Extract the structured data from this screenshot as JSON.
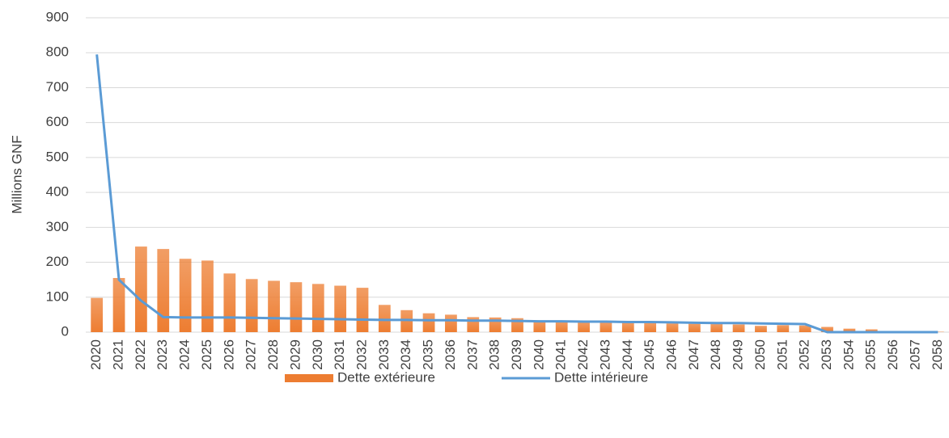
{
  "chart_data": {
    "type": "bar",
    "y_label": "Millions GNF",
    "categories": [
      "2020",
      "2021",
      "2022",
      "2023",
      "2024",
      "2025",
      "2026",
      "2027",
      "2028",
      "2029",
      "2030",
      "2031",
      "2032",
      "2033",
      "2034",
      "2035",
      "2036",
      "2037",
      "2038",
      "2039",
      "2040",
      "2041",
      "2042",
      "2043",
      "2044",
      "2045",
      "2046",
      "2047",
      "2048",
      "2049",
      "2050",
      "2051",
      "2052",
      "2053",
      "2054",
      "2055",
      "2056",
      "2057",
      "2058"
    ],
    "series": [
      {
        "name": "Dette extérieure",
        "type": "bar",
        "color": "#ed7d31",
        "values": [
          98,
          155,
          245,
          238,
          210,
          205,
          168,
          152,
          147,
          143,
          138,
          133,
          127,
          78,
          63,
          54,
          50,
          43,
          42,
          40,
          32,
          30,
          30,
          28,
          27,
          26,
          25,
          24,
          23,
          22,
          18,
          20,
          19,
          15,
          10,
          8,
          3,
          2,
          1
        ]
      },
      {
        "name": "Dette intérieure",
        "type": "line",
        "color": "#5b9bd5",
        "values": [
          795,
          150,
          90,
          43,
          42,
          42,
          42,
          41,
          40,
          39,
          38,
          37,
          36,
          35,
          35,
          34,
          34,
          33,
          33,
          32,
          31,
          31,
          30,
          30,
          29,
          29,
          28,
          27,
          26,
          26,
          25,
          24,
          23,
          0,
          0,
          0,
          0,
          0,
          0
        ]
      }
    ],
    "ylim": [
      0,
      900
    ],
    "yticks": [
      0,
      100,
      200,
      300,
      400,
      500,
      600,
      700,
      800,
      900
    ],
    "grid": true,
    "legend": "bottom"
  }
}
